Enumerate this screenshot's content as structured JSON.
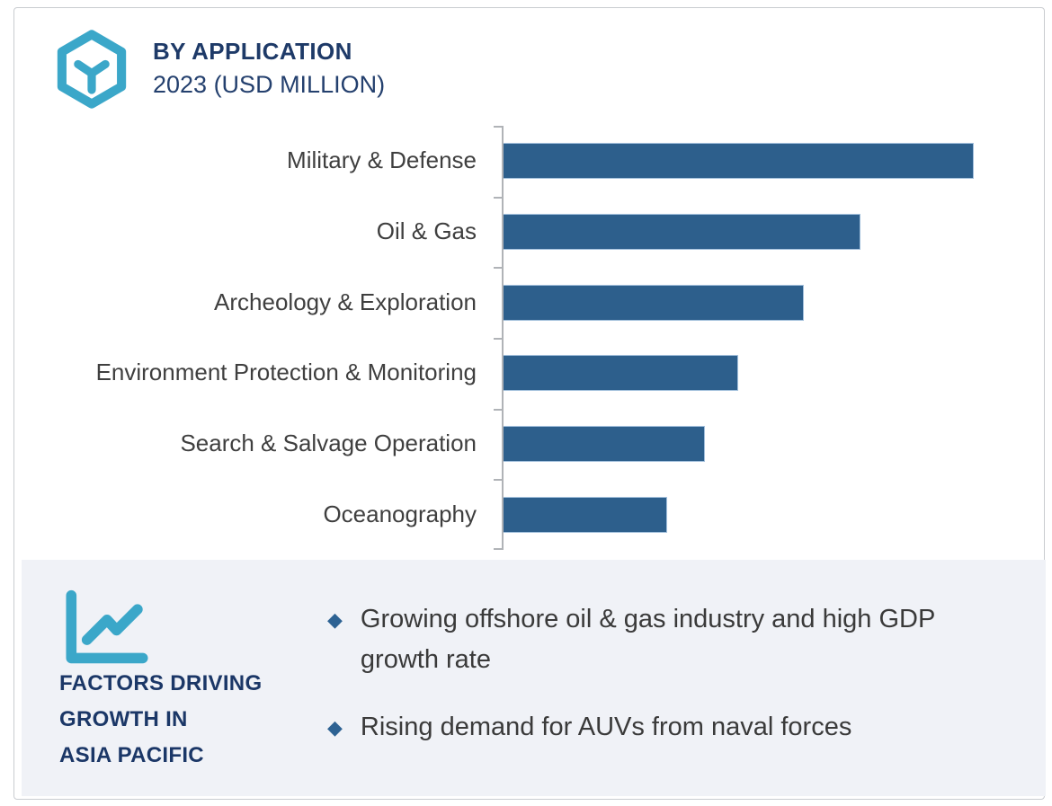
{
  "header": {
    "title": "BY APPLICATION",
    "subtitle": "2023 (USD MILLION)",
    "icon": "hexagon-cube-icon"
  },
  "chart_data": {
    "type": "bar",
    "orientation": "horizontal",
    "title": "BY APPLICATION",
    "subtitle": "2023 (USD MILLION)",
    "categories": [
      "Military & Defense",
      "Oil & Gas",
      "Archeology & Exploration",
      "Environment Protection & Monitoring",
      "Search & Salvage Operation",
      "Oceanography"
    ],
    "values_percent_of_max": [
      100,
      76,
      64,
      50,
      43,
      35
    ],
    "value_labels_visible": false,
    "value_axis_visible": false,
    "grid": false,
    "legend": false,
    "bar_color": "#2d5f8c",
    "bar_border_color": "#a3c0dc",
    "axis_color": "#b0b3b7",
    "label_color": "#3f3f3f"
  },
  "factors_panel": {
    "icon": "line-chart-icon",
    "heading_lines": [
      "FACTORS DRIVING",
      "GROWTH IN",
      "ASIA PACIFIC"
    ],
    "bullets": [
      "Growing offshore oil & gas industry and high GDP growth rate",
      "Rising demand for AUVs from naval forces"
    ],
    "background": "#f0f2f7",
    "bullet_color": "#2d6293",
    "heading_color": "#1b3767"
  },
  "colors": {
    "accent_cyan": "#3ba7c9",
    "navy": "#1e3a68",
    "card_border": "#c9ccd0"
  }
}
